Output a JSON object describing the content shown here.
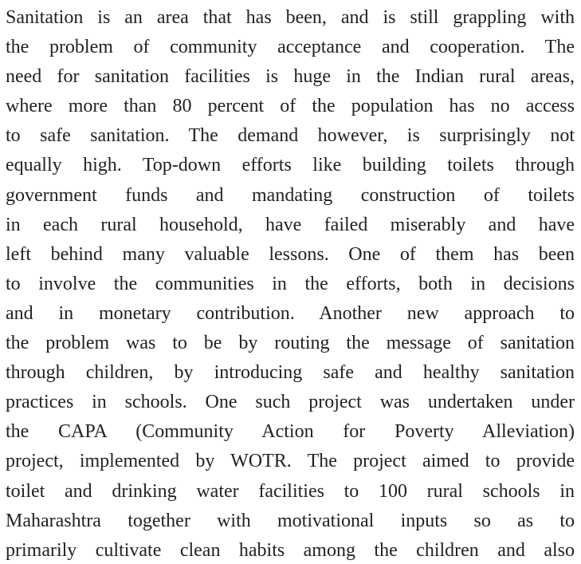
{
  "paragraph": {
    "lines": [
      "Sanitation is an area that has been, and is still grappling with",
      "the problem of community acceptance and cooperation. The",
      "need for sanitation facilities is huge in the Indian rural areas,",
      "where more than 80 percent of the population has no access",
      "to safe sanitation. The demand however, is surprisingly not",
      "equally high. Top-down efforts like building toilets through",
      "government funds and mandating construction of toilets",
      "in each rural household, have failed miserably and have",
      "left behind many valuable lessons. One of them has been",
      "to involve the communities in the efforts, both in decisions",
      "and in monetary contribution. Another new approach to",
      "the problem was to be by routing the message of sanitation",
      "through children, by introducing safe and healthy sanitation",
      "practices in schools. One such project was undertaken under",
      "the CAPA (Community Action for Poverty Alleviation)",
      "project, implemented by WOTR. The project aimed to provide",
      "toilet and drinking water facilities to 100 rural schools in",
      "Maharashtra together with motivational inputs so as to",
      "primarily cultivate clean habits among the children and also"
    ]
  }
}
